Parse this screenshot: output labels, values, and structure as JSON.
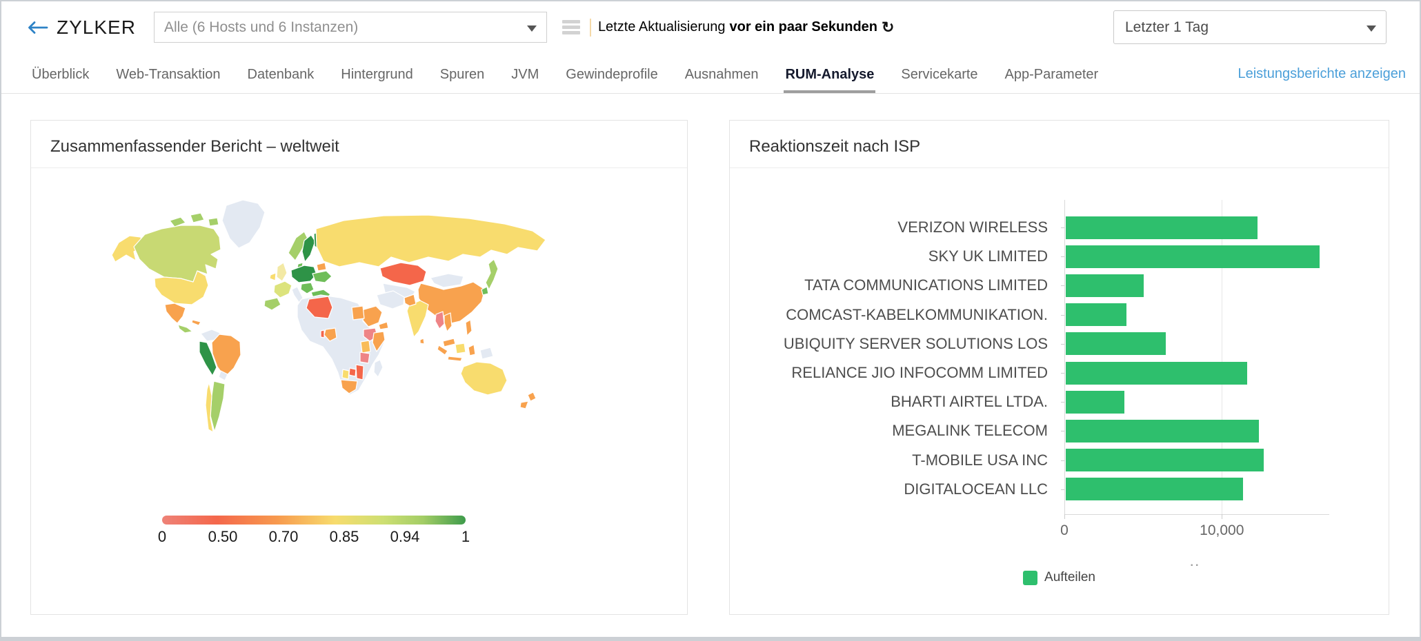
{
  "header": {
    "brand": "ZYLKER",
    "back_icon": "left-arrow",
    "menu_icon": "hamburger-menu",
    "refresh_icon": "refresh-arrow",
    "app_selector": {
      "value": "Alle (6 Hosts und 6 Instanzen)"
    },
    "last_update": {
      "label": "Letzte Aktualisierung",
      "value": "vor ein paar Sekunden"
    },
    "time_range": {
      "value": "Letzter 1 Tag"
    }
  },
  "nav": {
    "tabs": [
      {
        "label": "Überblick",
        "active": false
      },
      {
        "label": "Web-Transaktion",
        "active": false
      },
      {
        "label": "Datenbank",
        "active": false
      },
      {
        "label": "Hintergrund",
        "active": false
      },
      {
        "label": "Spuren",
        "active": false
      },
      {
        "label": "JVM",
        "active": false
      },
      {
        "label": "Gewindeprofile",
        "active": false
      },
      {
        "label": "Ausnahmen",
        "active": false
      },
      {
        "label": "RUM-Analyse",
        "active": true
      },
      {
        "label": "Servicekarte",
        "active": false
      },
      {
        "label": "App-Parameter",
        "active": false
      }
    ],
    "reports_link": "Leistungsberichte anzeigen"
  },
  "panels": {
    "world": {
      "title": "Zusammenfassender Bericht – weltweit"
    },
    "isp": {
      "title": "Reaktionszeit nach ISP"
    }
  },
  "chart_data": [
    {
      "type": "heatmap",
      "subtype": "world-choropleth",
      "title": "Zusammenfassender Bericht – weltweit",
      "legend_stops": [
        "0",
        "0.50",
        "0.70",
        "0.85",
        "0.94",
        "1"
      ],
      "legend_range": [
        0,
        1
      ],
      "legend_gradient": [
        {
          "pos": 0,
          "color": "#ee8277"
        },
        {
          "pos": 18,
          "color": "#f4674b"
        },
        {
          "pos": 38,
          "color": "#f79a4e"
        },
        {
          "pos": 57,
          "color": "#f7dc6d"
        },
        {
          "pos": 73,
          "color": "#cddf72"
        },
        {
          "pos": 86,
          "color": "#a3cd66"
        },
        {
          "pos": 100,
          "color": "#3e9b4b"
        }
      ],
      "palette": {
        "no-data": "#e3e9f2",
        "yellow": "#f8dc6e",
        "pale-yellow": "#f3e9a4",
        "yellow-green": "#c8d973",
        "pale-yellow-green": "#dce37c",
        "light-green": "#a5cf69",
        "mid-green": "#6fbd59",
        "dark-green": "#2e9347",
        "orange": "#f8a24e",
        "light-orange": "#f9bc58",
        "red-orange": "#f4664a",
        "pink": "#ee8486"
      },
      "regions": {
        "alaska": "yellow",
        "canada": "yellow-green",
        "arctic-islands-west": "light-green",
        "arctic-islands-mid": "light-green",
        "arctic-islands-east": "light-green",
        "greenland": "no-data",
        "usa": "yellow",
        "mexico": "orange",
        "central-america": "light-green",
        "cuba": "orange",
        "colombia": "no-data",
        "peru": "dark-green",
        "brazil": "orange",
        "bolivia": "no-data",
        "argentina": "light-green",
        "chile": "yellow",
        "iceland": "yellow",
        "ireland": "yellow",
        "uk": "pale-yellow",
        "norway": "light-green",
        "sweden": "dark-green",
        "finland": "dark-green",
        "denmark": "mid-green",
        "germany-poland": "dark-green",
        "belarus": "orange",
        "ukraine": "mid-green",
        "france": "pale-yellow-green",
        "spain": "light-green",
        "italy": "no-data",
        "balkans": "mid-green",
        "turkey": "mid-green",
        "russia": "yellow",
        "kazakhstan": "red-orange",
        "central-asia": "no-data",
        "mongolia": "no-data",
        "china": "orange",
        "india": "yellow",
        "pakistan": "orange",
        "iran": "no-data",
        "saudi-arabia": "orange",
        "oman-yemen": "orange",
        "africa-mainland": "no-data",
        "algeria": "red-orange",
        "egypt": "orange",
        "nigeria": "orange",
        "benin": "red-orange",
        "ethiopia": "pink",
        "somalia": "orange",
        "kenya": "light-orange",
        "tanzania": "pink",
        "mozambique": "red-orange",
        "zimbabwe": "red-orange",
        "botswana": "yellow",
        "south-africa": "orange",
        "madagascar": "no-data",
        "myanmar": "pink",
        "vietnam": "orange",
        "malaysia": "orange",
        "sumatra": "orange",
        "borneo": "yellow",
        "java": "orange",
        "sulawesi": "orange",
        "new-guinea": "no-data",
        "philippines": "orange",
        "japan": "light-green",
        "south-korea": "mid-green",
        "sri-lanka": "orange",
        "australia": "yellow",
        "new-zealand-north": "orange",
        "new-zealand-south": "orange"
      }
    },
    {
      "type": "bar",
      "orientation": "horizontal",
      "title": "Reaktionszeit nach ISP",
      "categories": [
        "VERIZON WIRELESS",
        "SKY UK LIMITED",
        "TATA COMMUNICATIONS LIMITED",
        "COMCAST-KABELKOMMUNIKATION.",
        "UBIQUITY SERVER SOLUTIONS LOS",
        "RELIANCE JIO INFOCOMM LIMITED",
        "BHARTI AIRTEL LTDA.",
        "MEGALINK TELECOM",
        "T-MOBILE USA INC",
        "DIGITALOCEAN LLC"
      ],
      "values": [
        12210,
        16160,
        4950,
        3850,
        6360,
        11560,
        3730,
        12290,
        12600,
        11290
      ],
      "xlim": [
        0,
        16820
      ],
      "xticks": [
        {
          "value": 0,
          "label": "0"
        },
        {
          "value": 10000,
          "label": "10,000"
        }
      ],
      "axis_note": "..",
      "grid": "vertical",
      "bar_color": "#2ebf6d",
      "legend": [
        {
          "label": "Aufteilen",
          "color": "#2ebf6d"
        }
      ]
    }
  ]
}
